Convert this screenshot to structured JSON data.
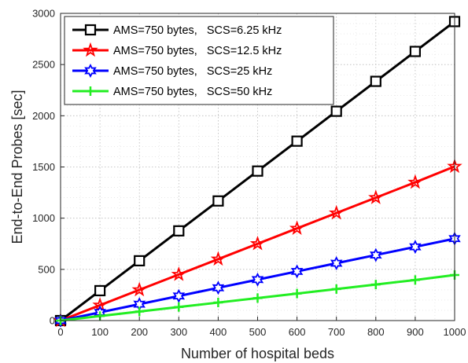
{
  "chart_data": {
    "type": "line",
    "title": "",
    "xlabel": "Number of hospital beds",
    "ylabel": "End-to-End Probes [sec]",
    "xlim": [
      0,
      1000
    ],
    "ylim": [
      0,
      3000
    ],
    "xticks": [
      "0",
      "100",
      "200",
      "300",
      "400",
      "500",
      "600",
      "700",
      "800",
      "900",
      "1000"
    ],
    "yticks": [
      "0",
      "500",
      "1000",
      "1500",
      "2000",
      "2500",
      "3000"
    ],
    "grid": true,
    "legend_position": "top-left",
    "x": [
      0,
      100,
      200,
      300,
      400,
      500,
      600,
      700,
      800,
      900,
      1000
    ],
    "series": [
      {
        "name": "AMS=750 bytes,   SCS=6.25 kHz",
        "color": "#000000",
        "marker": "square",
        "values": [
          0,
          292,
          584,
          876,
          1168,
          1460,
          1752,
          2044,
          2336,
          2628,
          2920
        ]
      },
      {
        "name": "AMS=750 bytes,   SCS=12.5 kHz",
        "color": "#ff0000",
        "marker": "star",
        "values": [
          0,
          150,
          300,
          450,
          600,
          750,
          900,
          1050,
          1200,
          1350,
          1505
        ]
      },
      {
        "name": "AMS=750 bytes,   SCS=25 kHz",
        "color": "#0000ff",
        "marker": "hexagram",
        "values": [
          0,
          80,
          160,
          240,
          320,
          400,
          480,
          560,
          640,
          720,
          800
        ]
      },
      {
        "name": "AMS=750 bytes,   SCS=50 kHz",
        "color": "#22ee22",
        "marker": "plus",
        "values": [
          0,
          44,
          88,
          132,
          176,
          220,
          264,
          308,
          352,
          396,
          445
        ]
      }
    ]
  }
}
